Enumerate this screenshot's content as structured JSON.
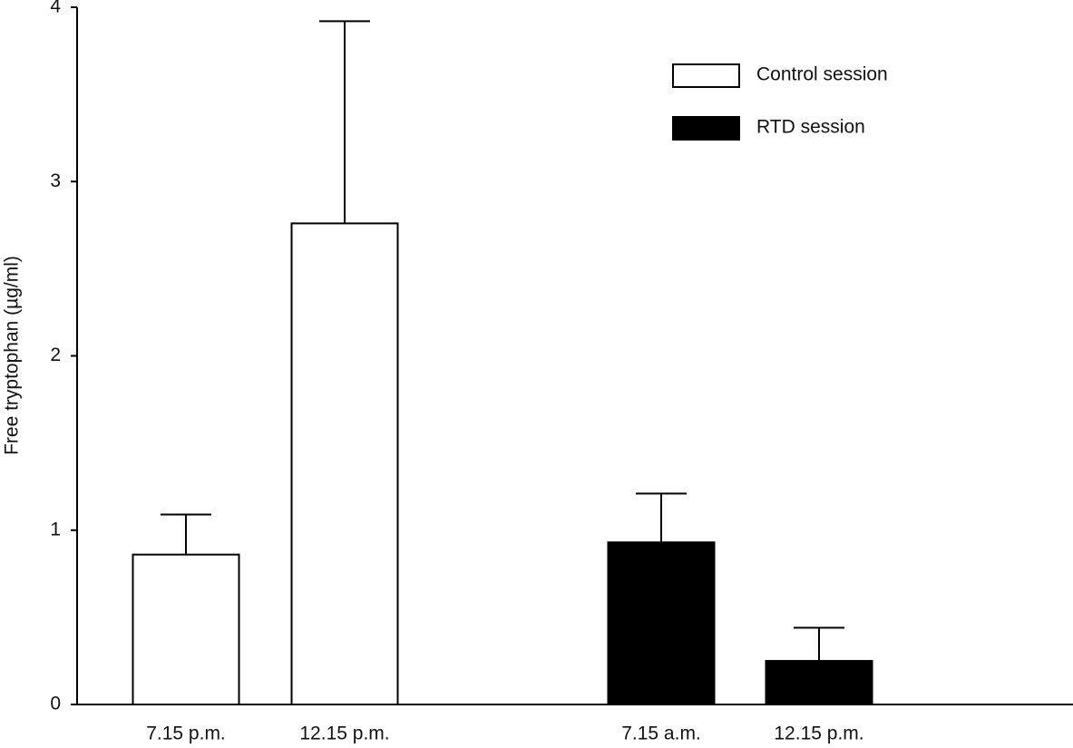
{
  "chart_data": {
    "type": "bar",
    "ylabel": "Free tryptophan (µg/ml)",
    "categories": [
      "7.15 p.m.",
      "12.15 p.m.",
      "7.15 a.m.",
      "12.15 p.m."
    ],
    "series": [
      {
        "name": "Control session",
        "color": "#ffffff",
        "values": [
          0.86,
          2.76,
          null,
          null
        ],
        "errors": [
          0.23,
          1.16,
          null,
          null
        ]
      },
      {
        "name": "RTD session",
        "color": "#000000",
        "values": [
          null,
          null,
          0.93,
          0.25
        ],
        "errors": [
          null,
          null,
          0.28,
          0.19
        ]
      }
    ],
    "ylim": [
      0,
      4
    ],
    "yticks": [
      0,
      1,
      2,
      3,
      4
    ],
    "legend": "top-right"
  }
}
